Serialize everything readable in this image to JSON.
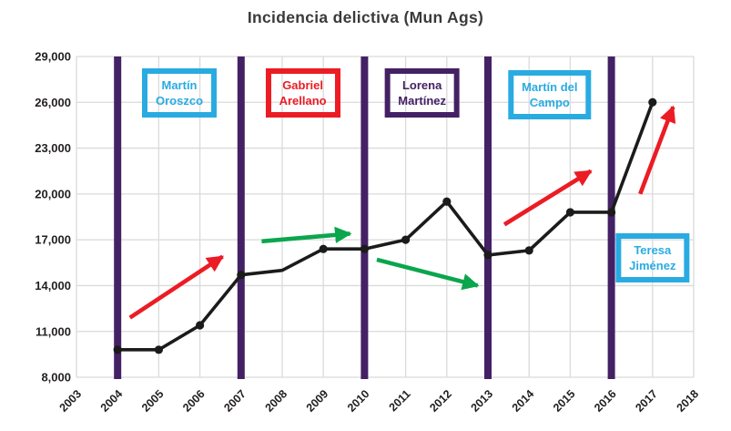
{
  "page": {
    "background": "#ffffff"
  },
  "colors": {
    "line": "#1b1b1b",
    "grid": "#dadada",
    "divider": "#442164",
    "red": "#ec1c24",
    "green": "#0aa64d",
    "cyan": "#29abe2",
    "purple": "#442164",
    "axis_text": "#231f20",
    "title_text": "#3a3a3a"
  },
  "chart_data": {
    "type": "line",
    "title": "Incidencia delictiva (Mun Ags)",
    "xlabel": "",
    "ylabel": "",
    "xlim": [
      2003,
      2018
    ],
    "ylim": [
      8000,
      29000
    ],
    "grid": true,
    "legend": "none",
    "xticks": [
      2003,
      2004,
      2005,
      2006,
      2007,
      2008,
      2009,
      2010,
      2011,
      2012,
      2013,
      2014,
      2015,
      2016,
      2017,
      2018
    ],
    "ytick_values": [
      8000,
      11000,
      14000,
      17000,
      20000,
      23000,
      26000,
      29000
    ],
    "ytick_labels": [
      "8,000",
      "11,000",
      "14,000",
      "17,000",
      "20,000",
      "23,000",
      "26,000",
      "29,000"
    ],
    "series": [
      {
        "name": "Incidencia delictiva",
        "points": [
          {
            "year": 2004,
            "value": 9800,
            "marker": true
          },
          {
            "year": 2005,
            "value": 9800,
            "marker": true
          },
          {
            "year": 2006,
            "value": 11400,
            "marker": true
          },
          {
            "year": 2007,
            "value": 14700,
            "marker": true
          },
          {
            "year": 2008,
            "value": 15000,
            "marker": false
          },
          {
            "year": 2009,
            "value": 16400,
            "marker": true
          },
          {
            "year": 2010,
            "value": 16400,
            "marker": true
          },
          {
            "year": 2011,
            "value": 17000,
            "marker": true
          },
          {
            "year": 2012,
            "value": 19500,
            "marker": true
          },
          {
            "year": 2013,
            "value": 16000,
            "marker": true
          },
          {
            "year": 2014,
            "value": 16300,
            "marker": true
          },
          {
            "year": 2015,
            "value": 18800,
            "marker": true
          },
          {
            "year": 2016,
            "value": 18800,
            "marker": true
          },
          {
            "year": 2017,
            "value": 26000,
            "marker": true
          }
        ]
      }
    ],
    "term_divider_years": [
      2004,
      2007,
      2010,
      2013,
      2016
    ],
    "mayor_boxes": [
      {
        "name": "Martín Oroszco",
        "lines": [
          "Martín",
          "Oroszco"
        ],
        "color": "cyan",
        "x": 2005.5,
        "y": 26600
      },
      {
        "name": "Gabriel Arellano",
        "lines": [
          "Gabriel",
          "Arellano"
        ],
        "color": "red",
        "x": 2008.5,
        "y": 26600
      },
      {
        "name": "Lorena Martínez",
        "lines": [
          "Lorena",
          "Martínez"
        ],
        "color": "purple",
        "x": 2011.4,
        "y": 26600
      },
      {
        "name": "Martín del Campo",
        "lines": [
          "Martín del",
          "Campo"
        ],
        "color": "cyan",
        "x": 2014.5,
        "y": 26500
      },
      {
        "name": "Teresa Jiménez",
        "lines": [
          "Teresa",
          "Jiménez"
        ],
        "color": "cyan",
        "x": 2017.0,
        "y": 15800
      }
    ],
    "trend_arrows": [
      {
        "color": "red",
        "x1": 2004.3,
        "y1": 11900,
        "x2": 2006.55,
        "y2": 15900
      },
      {
        "color": "green",
        "x1": 2007.5,
        "y1": 16900,
        "x2": 2009.65,
        "y2": 17400
      },
      {
        "color": "green",
        "x1": 2010.3,
        "y1": 15700,
        "x2": 2012.75,
        "y2": 14000
      },
      {
        "color": "red",
        "x1": 2013.4,
        "y1": 18000,
        "x2": 2015.5,
        "y2": 21500
      },
      {
        "color": "red",
        "x1": 2016.7,
        "y1": 20000,
        "x2": 2017.5,
        "y2": 25700
      }
    ]
  }
}
